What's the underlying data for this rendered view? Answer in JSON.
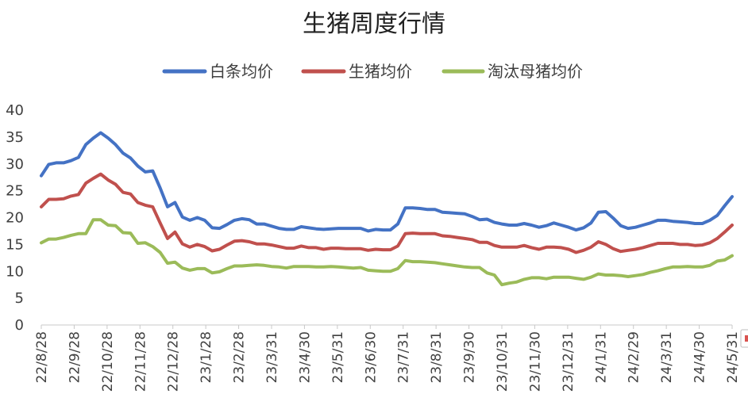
{
  "chart_data": {
    "type": "line",
    "title": "生猪周度行情",
    "xlabel": "",
    "ylabel": "",
    "ylim": [
      0,
      40
    ],
    "yticks": [
      0,
      5,
      10,
      15,
      20,
      25,
      30,
      35,
      40
    ],
    "x_tick_labels": [
      "22/8/28",
      "22/9/28",
      "22/10/28",
      "22/11/28",
      "22/12/28",
      "23/1/28",
      "23/2/28",
      "23/3/31",
      "23/4/30",
      "23/5/31",
      "23/6/30",
      "23/7/31",
      "23/8/31",
      "23/9/30",
      "23/10/31",
      "23/11/30",
      "23/12/31",
      "24/1/31",
      "24/2/29",
      "24/3/31",
      "24/4/30",
      "24/5/31"
    ],
    "legend_position": "top",
    "series": [
      {
        "name": "白条均价",
        "color": "#4472C4",
        "values": [
          27.8,
          29.9,
          30.2,
          30.2,
          30.6,
          31.2,
          33.6,
          34.8,
          35.8,
          34.8,
          33.6,
          32.0,
          31.1,
          29.6,
          28.5,
          28.7,
          25.5,
          22.0,
          22.8,
          20.1,
          19.5,
          20.0,
          19.5,
          18.1,
          18.0,
          18.7,
          19.5,
          19.8,
          19.6,
          18.8,
          18.8,
          18.4,
          18.0,
          17.8,
          17.8,
          18.3,
          18.1,
          17.9,
          17.8,
          17.9,
          18.0,
          18.0,
          18.0,
          18.0,
          17.5,
          17.8,
          17.7,
          17.7,
          18.8,
          21.8,
          21.8,
          21.7,
          21.5,
          21.5,
          21.0,
          20.9,
          20.8,
          20.7,
          20.2,
          19.6,
          19.7,
          19.1,
          18.8,
          18.6,
          18.6,
          18.9,
          18.6,
          18.2,
          18.5,
          19.0,
          18.6,
          18.2,
          17.7,
          18.1,
          19.0,
          21.0,
          21.1,
          19.9,
          18.5,
          18.0,
          18.2,
          18.6,
          19.0,
          19.5,
          19.5,
          19.3,
          19.2,
          19.1,
          18.9,
          18.9,
          19.5,
          20.4,
          22.2,
          23.9
        ]
      },
      {
        "name": "生猪均价",
        "color": "#C0504D",
        "values": [
          22.0,
          23.4,
          23.4,
          23.5,
          24.0,
          24.3,
          26.4,
          27.3,
          28.1,
          27.0,
          26.2,
          24.7,
          24.4,
          22.8,
          22.3,
          22.0,
          19.0,
          16.1,
          17.3,
          15.1,
          14.5,
          15.0,
          14.6,
          13.8,
          14.1,
          14.9,
          15.6,
          15.7,
          15.5,
          15.1,
          15.1,
          14.9,
          14.6,
          14.3,
          14.3,
          14.7,
          14.4,
          14.4,
          14.1,
          14.3,
          14.3,
          14.2,
          14.2,
          14.2,
          13.9,
          14.1,
          14.0,
          14.0,
          14.7,
          17.0,
          17.1,
          17.0,
          17.0,
          17.0,
          16.6,
          16.5,
          16.3,
          16.1,
          15.9,
          15.4,
          15.4,
          14.8,
          14.5,
          14.5,
          14.5,
          14.8,
          14.4,
          14.1,
          14.5,
          14.5,
          14.4,
          14.1,
          13.5,
          13.9,
          14.5,
          15.5,
          15.0,
          14.2,
          13.7,
          13.9,
          14.1,
          14.4,
          14.8,
          15.2,
          15.2,
          15.2,
          15.0,
          15.0,
          14.8,
          14.9,
          15.3,
          16.1,
          17.3,
          18.6
        ]
      },
      {
        "name": "淘汰母猪均价",
        "color": "#9BBB59",
        "values": [
          15.3,
          16.0,
          16.0,
          16.3,
          16.7,
          17.0,
          17.0,
          19.6,
          19.6,
          18.6,
          18.5,
          17.2,
          17.1,
          15.2,
          15.3,
          14.6,
          13.5,
          11.5,
          11.7,
          10.6,
          10.2,
          10.5,
          10.5,
          9.7,
          9.9,
          10.5,
          11.0,
          11.0,
          11.1,
          11.2,
          11.1,
          10.9,
          10.8,
          10.6,
          10.9,
          10.9,
          10.9,
          10.8,
          10.8,
          10.9,
          10.8,
          10.7,
          10.6,
          10.7,
          10.2,
          10.1,
          10.0,
          10.0,
          10.5,
          12.0,
          11.8,
          11.8,
          11.7,
          11.6,
          11.4,
          11.2,
          11.0,
          10.8,
          10.7,
          10.7,
          9.7,
          9.3,
          7.5,
          7.8,
          8.0,
          8.5,
          8.8,
          8.8,
          8.6,
          8.9,
          8.9,
          8.9,
          8.7,
          8.5,
          8.9,
          9.5,
          9.3,
          9.3,
          9.2,
          9.0,
          9.2,
          9.4,
          9.8,
          10.1,
          10.5,
          10.8,
          10.8,
          10.9,
          10.8,
          10.8,
          11.1,
          11.9,
          12.1,
          12.9
        ]
      }
    ]
  }
}
